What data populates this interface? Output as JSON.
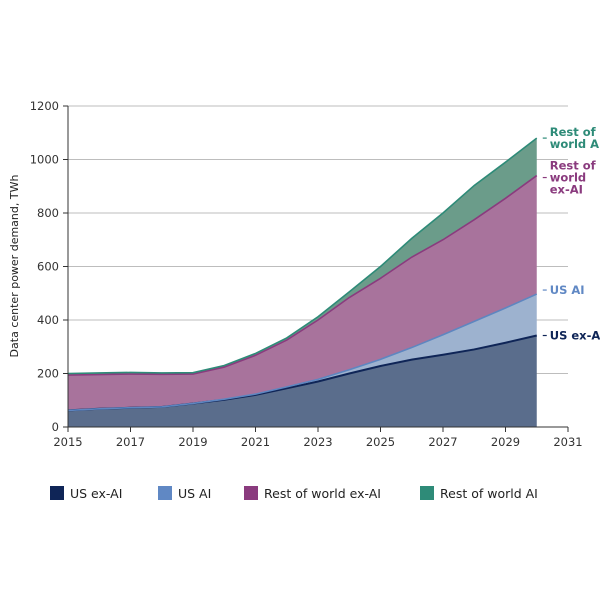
{
  "chart_data": {
    "type": "area",
    "stacked": true,
    "ylabel": "Data center power demand, TWh",
    "xlim": [
      2015,
      2031
    ],
    "ylim": [
      0,
      1200
    ],
    "x_ticks": [
      "2015",
      "2017",
      "2019",
      "2021",
      "2023",
      "2025",
      "2027",
      "2029",
      "2031"
    ],
    "y_ticks": [
      "0",
      "200",
      "400",
      "600",
      "800",
      "1000",
      "1200"
    ],
    "grid": "horizontal",
    "legend_position": "bottom",
    "x": [
      2015,
      2016,
      2017,
      2018,
      2019,
      2020,
      2021,
      2022,
      2023,
      2024,
      2025,
      2026,
      2027,
      2028,
      2029,
      2030
    ],
    "series": [
      {
        "name": "US ex-AI",
        "end_label": "US ex-AI",
        "fill": "#5a6d8c",
        "line": "#0f2557",
        "legend_color": "#0f2557",
        "values": [
          62,
          68,
          72,
          75,
          88,
          102,
          120,
          145,
          170,
          200,
          228,
          252,
          270,
          290,
          315,
          342
        ]
      },
      {
        "name": "US AI",
        "end_label": "US AI",
        "fill": "#9db2cf",
        "line": "#5e86c0",
        "legend_color": "#6088c4",
        "values": [
          0,
          0,
          0,
          0,
          0,
          2,
          3,
          5,
          8,
          14,
          25,
          45,
          75,
          105,
          130,
          155
        ]
      },
      {
        "name": "Rest of world ex-AI",
        "end_label": "Rest of world ex-AI",
        "fill": "#a8739c",
        "line": "#8a3b7e",
        "legend_color": "#8a3b7e",
        "values": [
          132,
          128,
          126,
          122,
          110,
          120,
          145,
          175,
          222,
          270,
          303,
          338,
          355,
          380,
          410,
          443
        ]
      },
      {
        "name": "Rest of world AI",
        "end_label": "Rest of world AI",
        "fill": "#6b9c8a",
        "line": "#2e8b78",
        "legend_color": "#2e8b78",
        "values": [
          6,
          6,
          6,
          5,
          5,
          6,
          7,
          8,
          12,
          21,
          44,
          70,
          100,
          128,
          135,
          140
        ]
      }
    ]
  }
}
